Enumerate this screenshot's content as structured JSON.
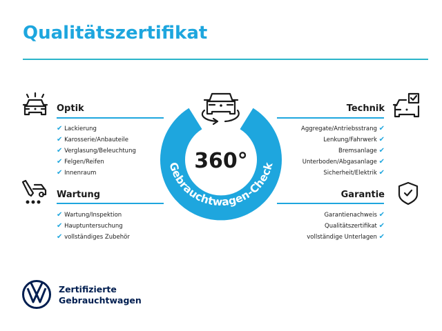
{
  "title": "Qualitätszertifikat",
  "colors": {
    "accent": "#1ea6de",
    "text": "#1a1a1a",
    "brand": "#001e50"
  },
  "badge": {
    "number": "360°",
    "ring_text": "Gebrauchtwagen-Check",
    "icon": "car-rotate-icon"
  },
  "sections": {
    "optik": {
      "heading": "Optik",
      "icon": "car-lights-icon",
      "items": [
        "Lackierung",
        "Karosserie/Anbauteile",
        "Verglasung/Beleuchtung",
        "Felgen/Reifen",
        "Innenraum"
      ]
    },
    "wartung": {
      "heading": "Wartung",
      "icon": "service-car-icon",
      "items": [
        "Wartung/Inspektion",
        "Hauptuntersuchung",
        "vollständiges Zubehör"
      ]
    },
    "technik": {
      "heading": "Technik",
      "icon": "car-checkbox-icon",
      "items": [
        "Aggregate/Antriebsstrang",
        "Lenkung/Fahrwerk",
        "Bremsanlage",
        "Unterboden/Abgasanlage",
        "Sicherheit/Elektrik"
      ]
    },
    "garantie": {
      "heading": "Garantie",
      "icon": "shield-check-icon",
      "items": [
        "Garantienachweis",
        "Qualitätszertifikat",
        "vollständige Unterlagen"
      ]
    }
  },
  "check_mark": "✔",
  "brand": {
    "line1": "Zertifizierte",
    "line2": "Gebrauchtwagen",
    "logo": "vw-logo"
  }
}
